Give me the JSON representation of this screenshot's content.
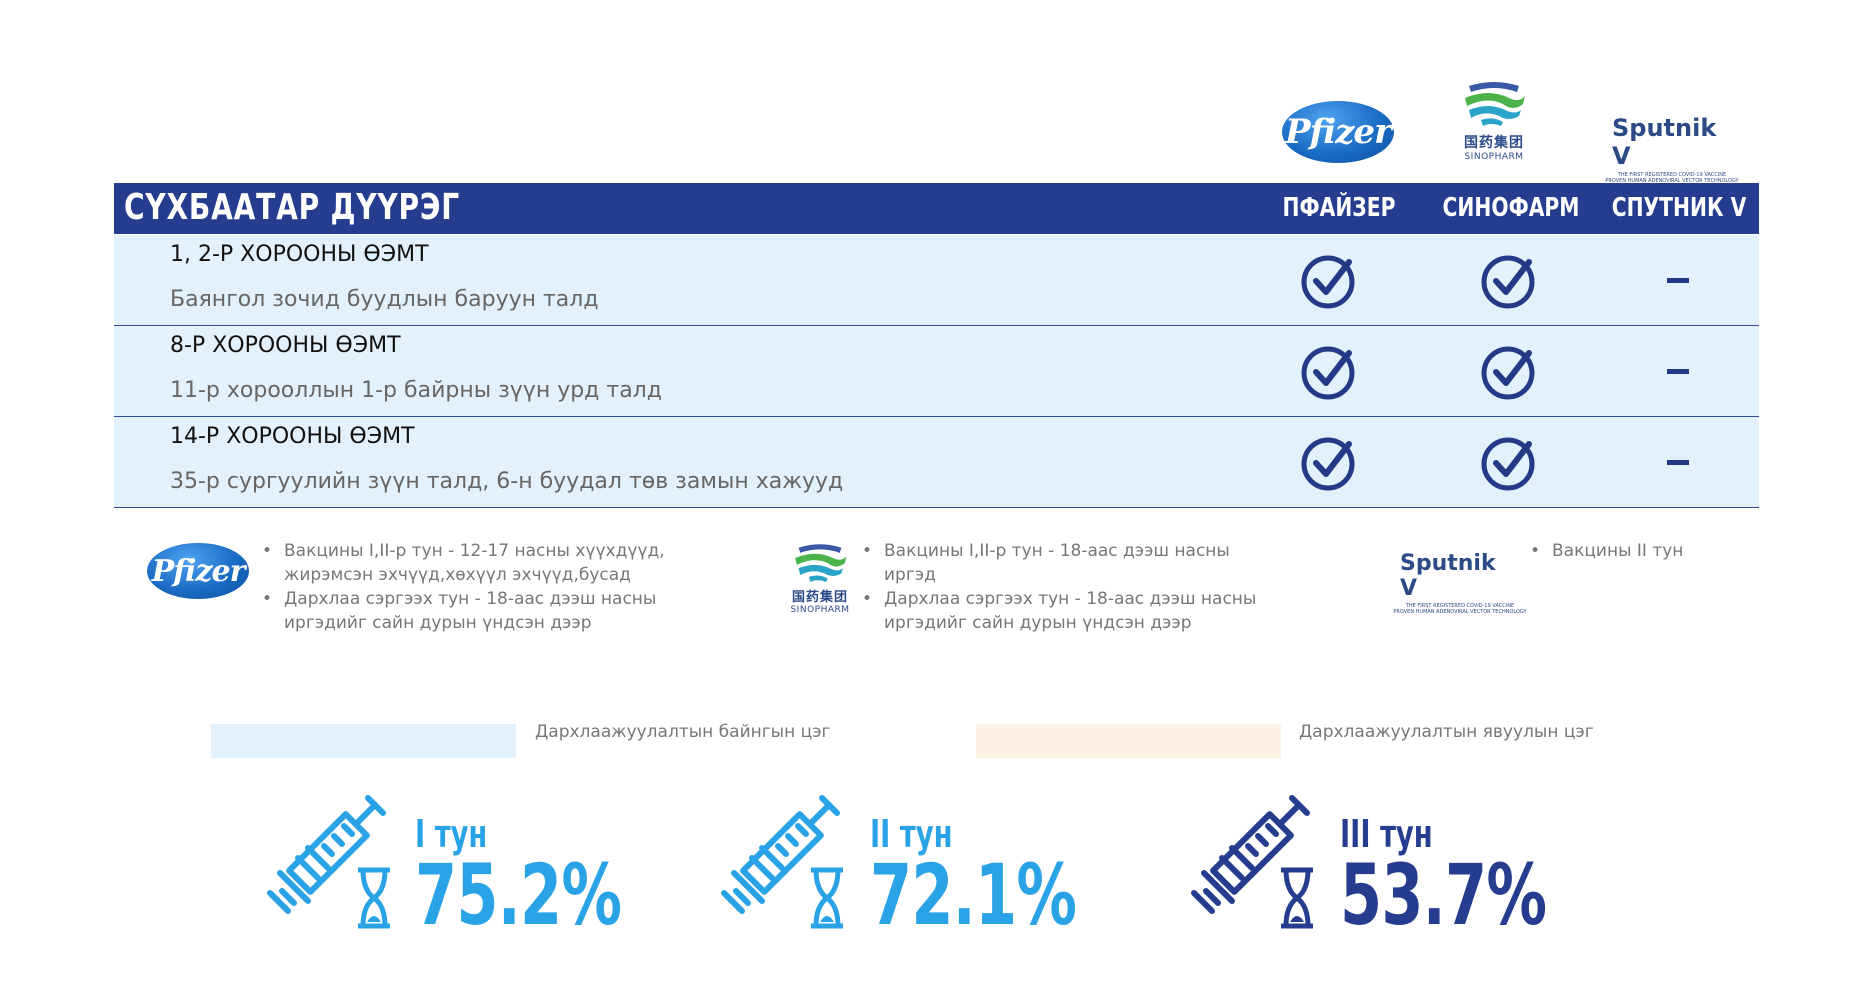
{
  "logos": {
    "pfizer": "Pfizer",
    "sinopharm_cn": "国药集团",
    "sinopharm_en": "SINOPHARM",
    "sputnik_name": "Sputnik V",
    "sputnik_sub": "THE FIRST REGISTERED COVID-19 VACCINE",
    "sputnik_sub2": "PROVEN HUMAN ADENOVIRAL VECTOR TECHNOLOGY"
  },
  "table": {
    "title": "СҮХБААТАР ДҮҮРЭГ",
    "columns": [
      "ПФАЙЗЕР",
      "СИНОФАРМ",
      "СПУТНИК V"
    ],
    "rows": [
      {
        "title": "1, 2-Р ХОРООНЫ ӨЭМТ",
        "subtitle": "Баянгол зочид буудлын баруун  талд",
        "pfizer": true,
        "sinopharm": true,
        "sputnik": false
      },
      {
        "title": "8-Р ХОРООНЫ ӨЭМТ",
        "subtitle": "11-р хорооллын 1-р байрны зүүн урд талд",
        "pfizer": true,
        "sinopharm": true,
        "sputnik": false
      },
      {
        "title": "14-Р ХОРООНЫ ӨЭМТ",
        "subtitle": "35-р сургуулийн зүүн талд, 6-н буудал төв замын хажууд",
        "pfizer": true,
        "sinopharm": true,
        "sputnik": false
      }
    ]
  },
  "legend": {
    "pfizer": [
      "Вакцины I,II-р тун - 12-17 насны хүүхдүүд, жирэмсэн эхчүүд,хөхүүл эхчүүд,бусад",
      "Дархлаа сэргээх тун - 18-аас дээш насны иргэдийг сайн дурын үндсэн дээр"
    ],
    "sinopharm": [
      "Вакцины I,II-р тун - 18-аас дээш насны иргэд",
      "Дархлаа сэргээх тун - 18-аас дээш насны иргэдийг сайн дурын үндсэн дээр"
    ],
    "sputnik": [
      "Вакцины II тун"
    ]
  },
  "swatches": [
    {
      "label": "Дархлаажуулалтын байнгын цэг",
      "color": "#e2f1fc"
    },
    {
      "label": "Дархлаажуулалтын явуулын цэг",
      "color": "#fdf0e4"
    }
  ],
  "doses": [
    {
      "label": "I тун",
      "value": "75.2%",
      "color": "#2aa3e6"
    },
    {
      "label": "II тун",
      "value": "72.1%",
      "color": "#2aa3e6"
    },
    {
      "label": "III тун",
      "value": "53.7%",
      "color": "#263d8f"
    }
  ],
  "colors": {
    "header": "#263d8f",
    "row_bg": "#e2f1fc",
    "icon": "#243a86"
  }
}
